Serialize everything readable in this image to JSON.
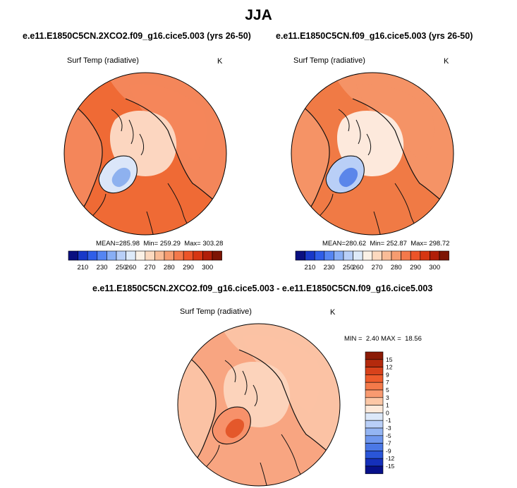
{
  "header": {
    "title": "JJA"
  },
  "chart_data": [
    {
      "type": "heatmap",
      "projection": "polar-stereographic",
      "title": "e.e11.E1850C5CN.2XCO2.f09_g16.cice5.003 (yrs 26-50)",
      "variable": "Surf Temp (radiative)",
      "units": "K",
      "stats": {
        "mean_label": "MEAN=",
        "mean": "285.98",
        "min_label": "Min=",
        "min": "259.29",
        "max_label": "Max=",
        "max": "303.28"
      },
      "colorbar": {
        "orientation": "horizontal",
        "levels": [
          "210",
          "230",
          "250",
          "260",
          "270",
          "280",
          "290",
          "300"
        ],
        "colors": [
          "#0a0f80",
          "#1838c8",
          "#2f5ee8",
          "#5585f2",
          "#88aef5",
          "#b8cff8",
          "#deeaf9",
          "#fbf1e6",
          "#fcd9bf",
          "#f9bc97",
          "#f69c70",
          "#f3794b",
          "#ec5428",
          "#d63612",
          "#b01e08",
          "#7d1404"
        ]
      },
      "field": {
        "ocean": "#ef6a35",
        "land": "#f4865a",
        "arctic_center": "#fcd6c0",
        "greenland": "#dbe6f9",
        "greenland_core": "#8eb1ef"
      }
    },
    {
      "type": "heatmap",
      "projection": "polar-stereographic",
      "title": "e.e11.E1850C5CN.f09_g16.cice5.003 (yrs 26-50)",
      "variable": "Surf Temp (radiative)",
      "units": "K",
      "stats": {
        "mean_label": "MEAN=",
        "mean": "280.62",
        "min_label": "Min=",
        "min": "252.87",
        "max_label": "Max=",
        "max": "298.72"
      },
      "colorbar": {
        "orientation": "horizontal",
        "levels": [
          "210",
          "230",
          "250",
          "260",
          "270",
          "280",
          "290",
          "300"
        ],
        "colors": [
          "#0a0f80",
          "#1838c8",
          "#2f5ee8",
          "#5585f2",
          "#88aef5",
          "#b8cff8",
          "#deeaf9",
          "#fbf1e6",
          "#fcd9bf",
          "#f9bc97",
          "#f69c70",
          "#f3794b",
          "#ec5428",
          "#d63612",
          "#b01e08",
          "#7d1404"
        ]
      },
      "field": {
        "ocean": "#f07a45",
        "land": "#f59366",
        "arctic_center": "#fde9dc",
        "greenland": "#b9cff7",
        "greenland_core": "#5b86ea"
      }
    },
    {
      "type": "heatmap",
      "projection": "polar-stereographic",
      "title": "e.e11.E1850C5CN.2XCO2.f09_g16.cice5.003 - e.e11.E1850C5CN.f09_g16.cice5.003",
      "variable": "Surf Temp (radiative)",
      "units": "K",
      "stats": {
        "min_label": "MIN =",
        "min": "2.40",
        "max_label": "MAX =",
        "max": "18.56"
      },
      "colorbar": {
        "orientation": "vertical",
        "levels": [
          "15",
          "12",
          "9",
          "7",
          "5",
          "3",
          "1",
          "0",
          "-1",
          "-3",
          "-5",
          "-7",
          "-9",
          "-12",
          "-15"
        ],
        "colors": [
          "#8b1a05",
          "#b42a0d",
          "#d8421b",
          "#ee5c2c",
          "#f47a4a",
          "#f89a70",
          "#fcc7a6",
          "#fde9da",
          "#dce8f9",
          "#b9cff8",
          "#94b5f3",
          "#6f97ee",
          "#4b78e6",
          "#2a55d8",
          "#1530bb",
          "#07108a"
        ]
      },
      "field": {
        "ocean": "#f8a581",
        "land": "#fbc2a4",
        "arctic_center": "#fcd3bb",
        "greenland": "#f7916a",
        "greenland_core": "#e4582b"
      }
    }
  ]
}
